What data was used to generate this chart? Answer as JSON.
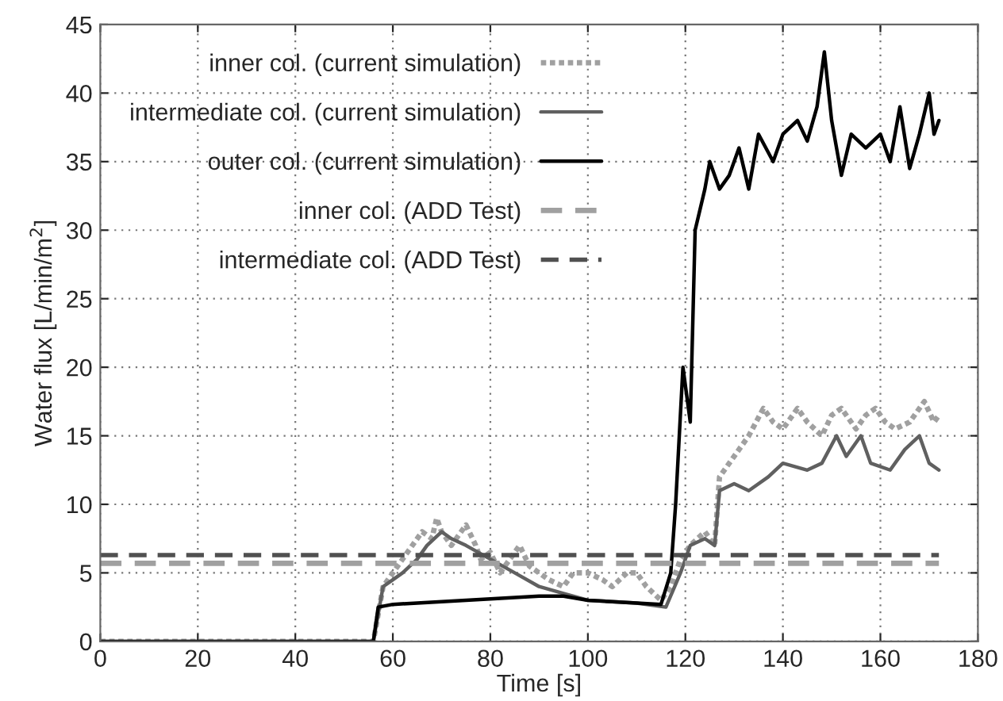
{
  "chart_data": {
    "type": "line",
    "xlabel": "Time [s]",
    "ylabel": "Water flux [L/min/m$^{2}$]",
    "xlim": [
      0,
      180
    ],
    "ylim": [
      0,
      45
    ],
    "xticks": [
      0,
      20,
      40,
      60,
      80,
      100,
      120,
      140,
      160,
      180
    ],
    "yticks": [
      0,
      5,
      10,
      15,
      20,
      25,
      30,
      35,
      40,
      45
    ],
    "grid": true,
    "legend": "top left",
    "series": [
      {
        "name": "inner col. (current simulation)",
        "color": "#a0a0a0",
        "line_style": "dotted",
        "x": [
          0,
          56,
          57,
          58,
          60,
          62,
          64,
          66,
          68,
          69,
          70,
          72,
          74,
          75,
          77,
          78,
          80,
          82,
          84,
          86,
          88,
          90,
          92,
          95,
          97,
          100,
          103,
          105,
          108,
          110,
          112,
          115,
          117,
          119,
          121,
          124,
          126,
          127,
          130,
          133,
          136,
          138,
          140,
          143,
          145,
          148,
          150,
          152,
          155,
          157,
          159,
          161,
          163,
          166,
          169,
          171,
          172
        ],
        "values": [
          0,
          0,
          2,
          4,
          5,
          6,
          7,
          8,
          7.5,
          9,
          8,
          7,
          8,
          8.5,
          7,
          6,
          6.5,
          5,
          6,
          7,
          5.5,
          5,
          4.5,
          4,
          5,
          5,
          4.5,
          4,
          5,
          5,
          4,
          3,
          4,
          6,
          7,
          8,
          7,
          12,
          13.5,
          15,
          17,
          16,
          15.5,
          17,
          16,
          15,
          16.5,
          17,
          15.5,
          16.5,
          17,
          16,
          15.5,
          16,
          17.5,
          16,
          16.5
        ]
      },
      {
        "name": "intermediate col. (current simulation)",
        "color": "#606060",
        "line_style": "solid",
        "x": [
          0,
          56,
          57,
          58,
          60,
          62,
          65,
          67,
          70,
          72,
          75,
          80,
          85,
          90,
          95,
          100,
          105,
          110,
          116,
          119,
          121,
          124,
          126,
          127,
          130,
          133,
          137,
          140,
          145,
          148,
          151,
          153,
          156,
          158,
          162,
          165,
          168,
          170,
          172
        ],
        "values": [
          0,
          0,
          2,
          4,
          4.5,
          5,
          6,
          7,
          8,
          7.5,
          7,
          6,
          5,
          4,
          3.5,
          3,
          2.9,
          2.8,
          2.5,
          5,
          7,
          7.5,
          7,
          11,
          11.5,
          11,
          12,
          13,
          12.5,
          13,
          15,
          13.5,
          15,
          13,
          12.5,
          14,
          15,
          13,
          12.5
        ]
      },
      {
        "name": "outer col. (current simulation)",
        "color": "#000000",
        "line_style": "solid",
        "x": [
          0,
          56,
          57,
          60,
          65,
          70,
          75,
          80,
          85,
          90,
          95,
          100,
          105,
          110,
          115,
          117,
          118,
          119.5,
          121,
          122,
          124,
          125,
          127,
          129,
          131,
          133,
          135,
          138,
          140,
          143,
          145,
          147,
          148.5,
          150,
          152,
          154,
          157,
          160,
          162,
          164,
          166,
          168,
          170,
          171,
          172
        ],
        "values": [
          0,
          0,
          2.5,
          2.7,
          2.8,
          2.9,
          3,
          3.1,
          3.2,
          3.3,
          3.3,
          3,
          2.9,
          2.8,
          2.7,
          5,
          10,
          20,
          16,
          30,
          33,
          35,
          33,
          34,
          36,
          33,
          37,
          35,
          37,
          38,
          36.5,
          39,
          43,
          38,
          34,
          37,
          36,
          37,
          35,
          39,
          34.5,
          37,
          40,
          37,
          38
        ]
      },
      {
        "name": "inner col. (ADD Test)",
        "color": "#a0a0a0",
        "line_style": "dashed",
        "x": [
          0,
          172
        ],
        "values": [
          5.7,
          5.7
        ]
      },
      {
        "name": "intermediate col. (ADD Test)",
        "color": "#505050",
        "line_style": "dashed",
        "x": [
          0,
          172
        ],
        "values": [
          6.3,
          6.3
        ]
      }
    ]
  }
}
